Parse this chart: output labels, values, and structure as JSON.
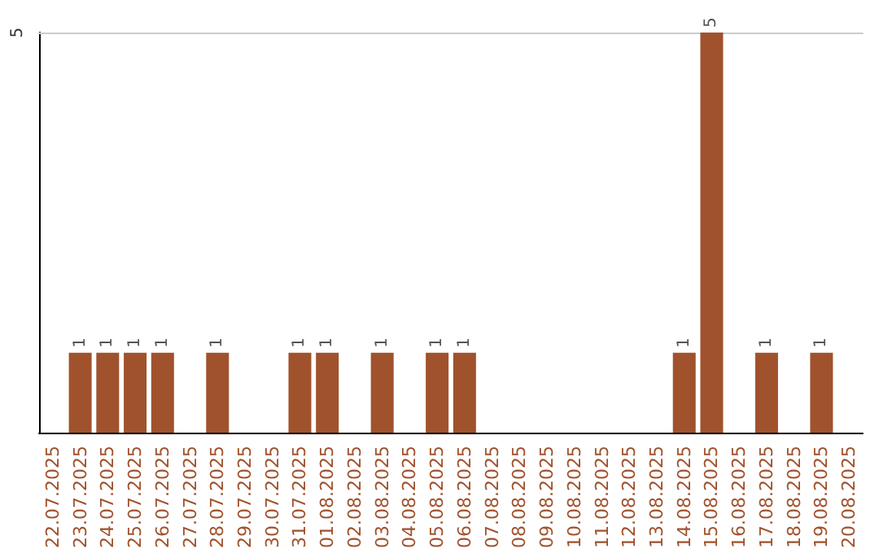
{
  "chart_data": {
    "type": "bar",
    "categories": [
      "22.07.2025",
      "23.07.2025",
      "24.07.2025",
      "25.07.2025",
      "26.07.2025",
      "27.07.2025",
      "28.07.2025",
      "29.07.2025",
      "30.07.2025",
      "31.07.2025",
      "01.08.2025",
      "02.08.2025",
      "03.08.2025",
      "04.08.2025",
      "05.08.2025",
      "06.08.2025",
      "07.08.2025",
      "08.08.2025",
      "09.08.2025",
      "10.08.2025",
      "11.08.2025",
      "12.08.2025",
      "13.08.2025",
      "14.08.2025",
      "15.08.2025",
      "16.08.2025",
      "17.08.2025",
      "18.08.2025",
      "19.08.2025",
      "20.08.2025"
    ],
    "values": [
      null,
      1,
      1,
      1,
      1,
      null,
      1,
      null,
      null,
      1,
      1,
      null,
      1,
      null,
      1,
      1,
      null,
      null,
      null,
      null,
      null,
      null,
      null,
      1,
      5,
      null,
      1,
      null,
      1,
      null
    ],
    "color": "#a0522d",
    "ylim": [
      0,
      5
    ],
    "yticks": [
      5
    ],
    "data_labels": true
  }
}
